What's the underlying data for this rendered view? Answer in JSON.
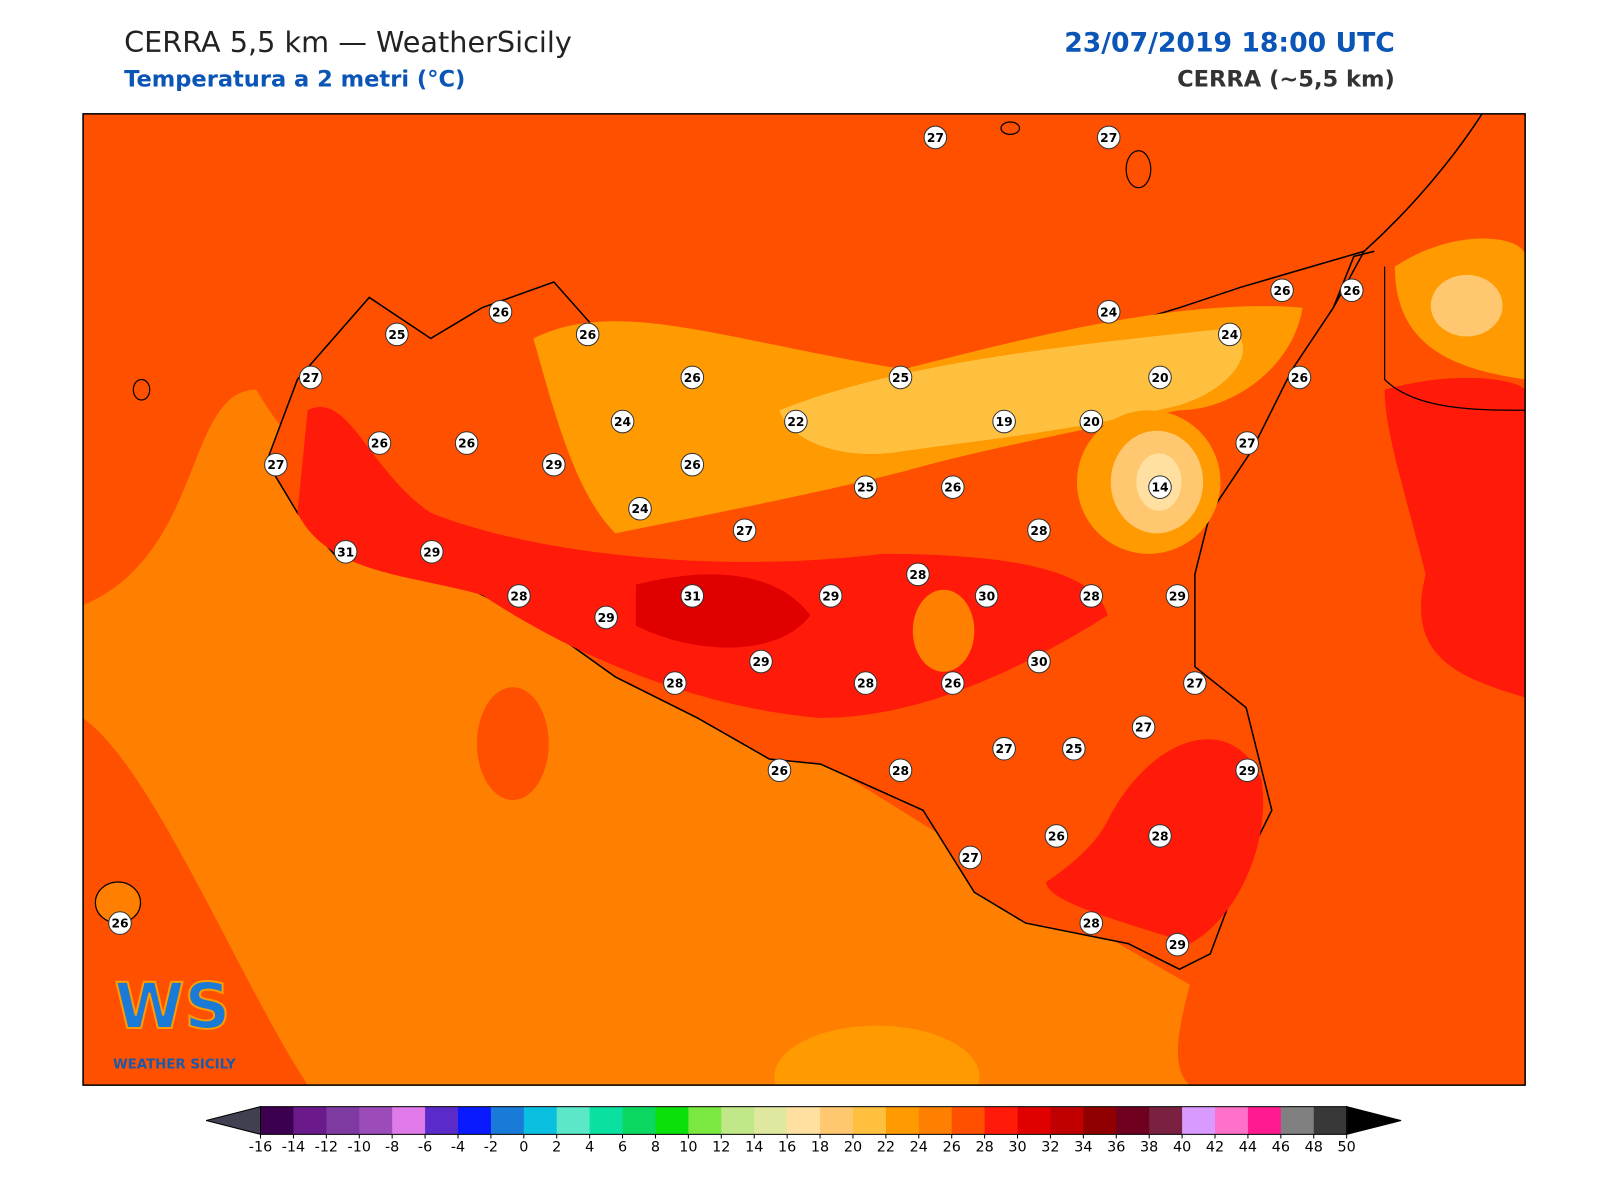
{
  "header": {
    "title": "CERRA 5,5 km — WeatherSicily",
    "subtitle": "Temperatura a 2 metri (°C)",
    "date": "23/07/2019 18:00 UTC",
    "model": "CERRA (~5,5 km)"
  },
  "stations": [
    27,
    27,
    26,
    25,
    26,
    27,
    26,
    25,
    24,
    26,
    26,
    24,
    20,
    26,
    24,
    22,
    19,
    20,
    27,
    26,
    26,
    29,
    26,
    27,
    25,
    26,
    14,
    24,
    27,
    28,
    31,
    29,
    28,
    28,
    31,
    29,
    30,
    28,
    29,
    29,
    29,
    30,
    28,
    28,
    26,
    27,
    27,
    27,
    25,
    26,
    28,
    29,
    26,
    28,
    27,
    26,
    28,
    29
  ],
  "colorbar": {
    "ticks": [
      -16,
      -14,
      -12,
      -10,
      -8,
      -6,
      -4,
      -2,
      0,
      2,
      4,
      6,
      8,
      10,
      12,
      14,
      16,
      18,
      20,
      22,
      24,
      26,
      28,
      30,
      32,
      34,
      36,
      38,
      40,
      42,
      44,
      46,
      48,
      50
    ],
    "colors": [
      "#3d0050",
      "#6a1a8a",
      "#7e3aa0",
      "#9b4cb8",
      "#e07ae8",
      "#5a2bc8",
      "#0a1aff",
      "#1a7ad8",
      "#0ac0e0",
      "#5ae8c8",
      "#0ae0a0",
      "#0ad860",
      "#0ae00a",
      "#7ae840",
      "#c0e888",
      "#e0e8a0",
      "#ffe0a0",
      "#ffc870",
      "#ffc040",
      "#ff9a00",
      "#ff8000",
      "#ff5000",
      "#ff1a0a",
      "#e00000",
      "#c00000",
      "#900000",
      "#700020",
      "#7a2040",
      "#d89aff",
      "#ff70c8",
      "#ff1a90",
      "#808080",
      "#383838"
    ],
    "under_color": "#404050",
    "over_color": "#000000"
  },
  "logo": {
    "mark": "WS",
    "name": "WEATHER SICILY"
  }
}
